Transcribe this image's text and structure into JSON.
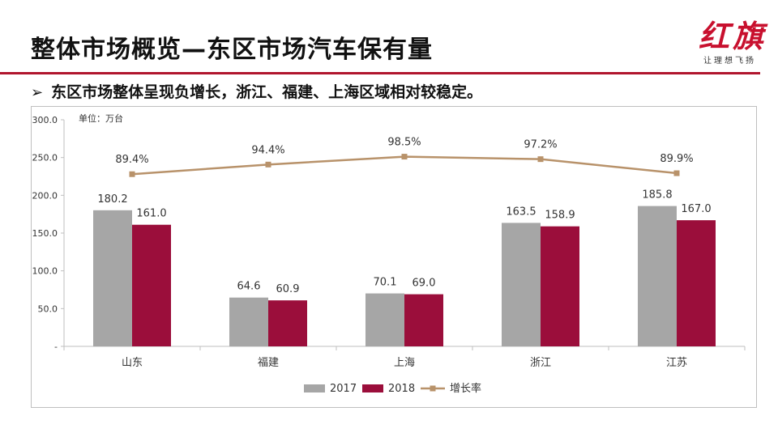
{
  "header": {
    "title": "整体市场概览—东区市场汽车保有量",
    "brand_logo": "红旗",
    "brand_slogan": "让理想飞扬",
    "accent_color": "#b0152d"
  },
  "subtitle": {
    "arrow": "➢",
    "text": "东区市场整体呈现负增长，浙江、福建、上海区域相对较稳定。"
  },
  "chart_data": {
    "type": "bar",
    "unit_label": "单位：万台",
    "categories": [
      "山东",
      "福建",
      "上海",
      "浙江",
      "江苏"
    ],
    "series": [
      {
        "name": "2017",
        "values": [
          180.2,
          64.6,
          70.1,
          163.5,
          185.8
        ],
        "color": "#a6a6a6",
        "labels": [
          "180.2",
          "64.6",
          "70.1",
          "163.5",
          "185.8"
        ]
      },
      {
        "name": "2018",
        "values": [
          161.0,
          60.9,
          69.0,
          158.9,
          167.0
        ],
        "color": "#9b0e3b",
        "labels": [
          "161.0",
          "60.9",
          "69.0",
          "158.9",
          "167.0"
        ]
      }
    ],
    "line_series": {
      "name": "增长率",
      "values": [
        89.4,
        94.4,
        98.5,
        97.2,
        89.9
      ],
      "labels": [
        "89.4%",
        "94.4%",
        "98.5%",
        "97.2%",
        "89.9%"
      ],
      "color": "#b8926a"
    },
    "y_ticks": [
      "-",
      "50.0",
      "100.0",
      "150.0",
      "200.0",
      "250.0",
      "300.0"
    ],
    "ylim": [
      0,
      300
    ],
    "grid": false,
    "legend_position": "bottom"
  }
}
